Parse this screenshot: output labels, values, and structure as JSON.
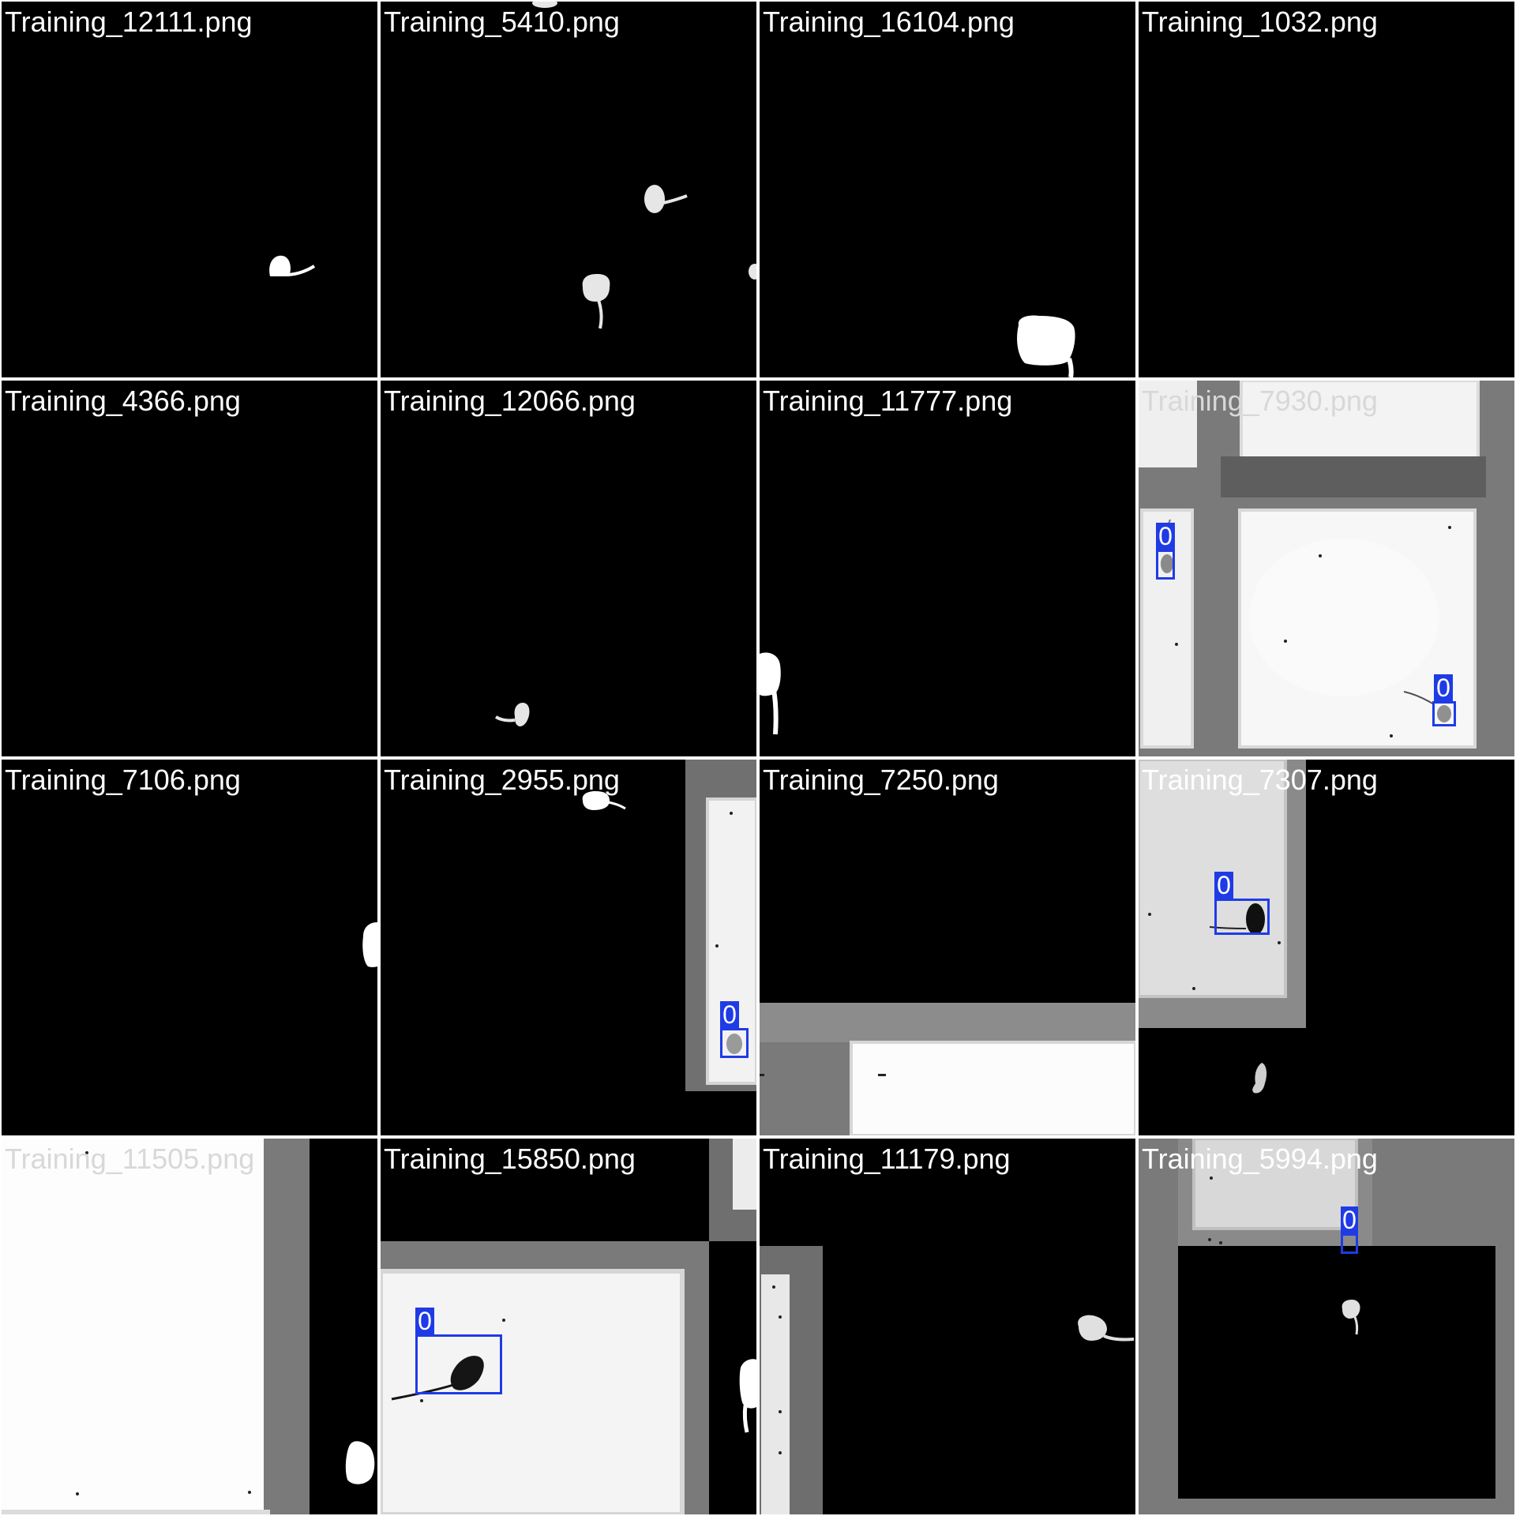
{
  "mosaic": {
    "tiles": [
      {
        "label": "Training_12111.png"
      },
      {
        "label": "Training_5410.png"
      },
      {
        "label": "Training_16104.png"
      },
      {
        "label": "Training_1032.png"
      },
      {
        "label": "Training_4366.png"
      },
      {
        "label": "Training_12066.png"
      },
      {
        "label": "Training_11777.png"
      },
      {
        "label": "Training_7930.png",
        "boxes": [
          {
            "class": "0"
          },
          {
            "class": "0"
          }
        ]
      },
      {
        "label": "Training_7106.png"
      },
      {
        "label": "Training_2955.png",
        "boxes": [
          {
            "class": "0"
          }
        ]
      },
      {
        "label": "Training_7250.png"
      },
      {
        "label": "Training_7307.png",
        "boxes": [
          {
            "class": "0"
          }
        ]
      },
      {
        "label": "Training_11505.png"
      },
      {
        "label": "Training_15850.png",
        "boxes": [
          {
            "class": "0"
          }
        ]
      },
      {
        "label": "Training_11179.png"
      },
      {
        "label": "Training_5994.png",
        "boxes": [
          {
            "class": "0"
          }
        ]
      }
    ]
  },
  "colors": {
    "box": "#1f3be6",
    "background": "#000000",
    "divider": "#ffffff"
  }
}
